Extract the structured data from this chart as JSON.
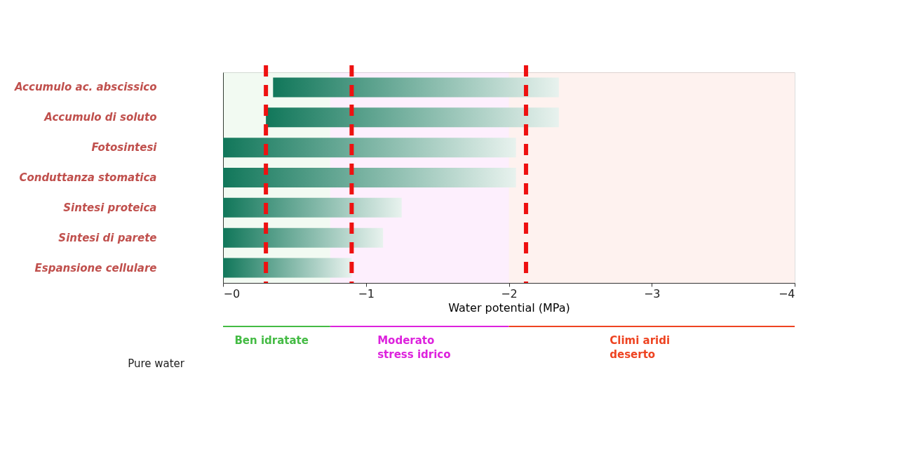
{
  "chart_data": {
    "type": "bar",
    "orientation": "horizontal",
    "categories": [
      "Accumulo ac. abscissico",
      "Accumulo di soluto",
      "Fotosintesi",
      "Conduttanza stomatica",
      "Sintesi proteica",
      "Sintesi di parete",
      "Espansione cellulare"
    ],
    "base": [
      -0.35,
      -0.3,
      0,
      0,
      0,
      0,
      0
    ],
    "values": [
      -2.0,
      -2.05,
      -2.05,
      -2.05,
      -1.25,
      -1.12,
      -0.9
    ],
    "color": "#11775a",
    "xlabel": "Water potential (MPa)",
    "xlim": [
      0,
      -4
    ],
    "xticks": [
      {
        "value": 0,
        "label": "−0"
      },
      -1,
      -2,
      -3,
      -4
    ],
    "grid": false,
    "ref_lines": [
      {
        "axis": "x",
        "value": -0.3,
        "color": "#ee1111",
        "line_style": "dashed"
      },
      {
        "axis": "x",
        "value": -0.9,
        "color": "#ee1111",
        "line_style": "dashed"
      },
      {
        "axis": "x",
        "value": -2.12,
        "color": "#ee1111",
        "line_style": "dashed"
      }
    ],
    "bands": [
      {
        "axis": "x",
        "from": 0,
        "to": -0.75,
        "label": "Ben idratate",
        "color": "#44bb44"
      },
      {
        "axis": "x",
        "from": -0.75,
        "to": -2,
        "label": "Moderato stress idrico",
        "color": "#dd22dd"
      },
      {
        "axis": "x",
        "from": -2,
        "to": -4,
        "label": "Climi aridi deserto",
        "color": "#ee4422"
      }
    ],
    "annotations": [
      "Pure water"
    ]
  }
}
